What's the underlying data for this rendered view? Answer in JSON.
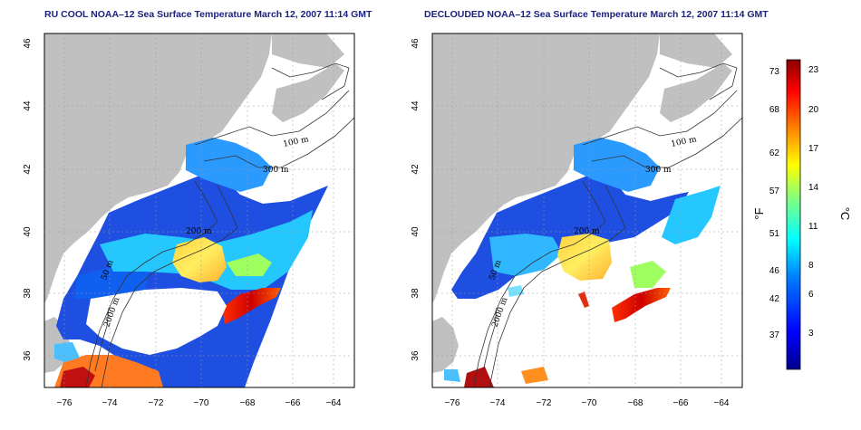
{
  "panels": [
    {
      "id": "left",
      "title": "RU COOL NOAA–12 Sea Surface Temperature March 12, 2007 11:14 GMT",
      "contour_labels": [
        "100 m",
        "300 m",
        "200 m",
        "50 m",
        "2000 m"
      ]
    },
    {
      "id": "right",
      "title": "DECLOUDED NOAA–12 Sea Surface Temperature March 12, 2007 11:14 GMT",
      "contour_labels": [
        "100 m",
        "300 m",
        "200 m",
        "50 m",
        "2000 m"
      ]
    }
  ],
  "axes": {
    "lon_ticks": [
      "−76",
      "−74",
      "−72",
      "−70",
      "−68",
      "−66",
      "−64"
    ],
    "lat_ticks": [
      "46",
      "44",
      "42",
      "40",
      "38",
      "36"
    ],
    "lon_range": [
      -77.3,
      -62.7
    ],
    "lat_range": [
      35,
      46
    ]
  },
  "colorbar": {
    "fahrenheit_label": "°F",
    "celsius_label": "°C",
    "fahrenheit_ticks": [
      "73",
      "68",
      "62",
      "57",
      "51",
      "46",
      "42",
      "37"
    ],
    "celsius_ticks": [
      "23",
      "20",
      "17",
      "14",
      "11",
      "8",
      "6",
      "3"
    ],
    "colors": [
      "#00008b",
      "#0000ff",
      "#0080ff",
      "#00ffff",
      "#80ff80",
      "#ffff00",
      "#ff8000",
      "#ff0000",
      "#8b0000"
    ]
  },
  "colors": {
    "land": "#c0c0c0",
    "title": "#1a237e"
  }
}
